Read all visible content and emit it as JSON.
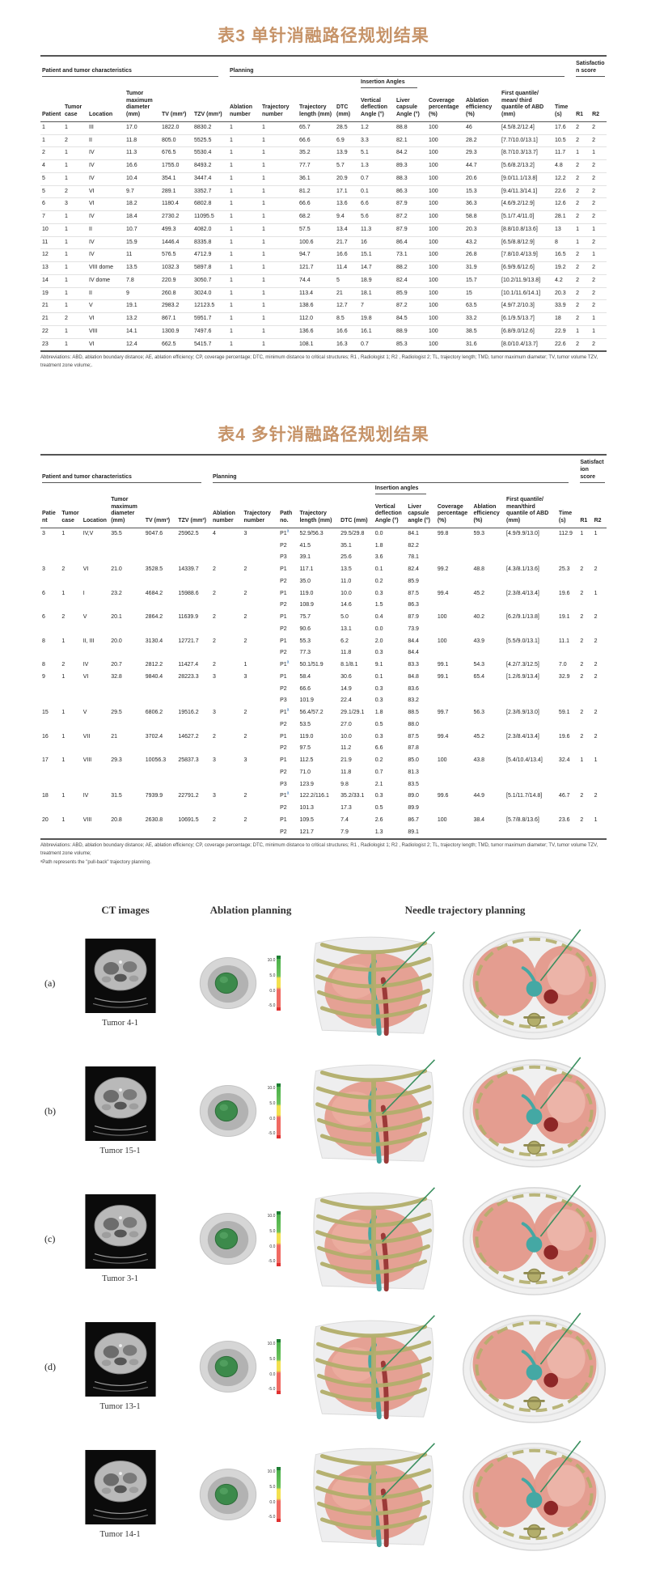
{
  "page": {
    "accent_color": "#C69368",
    "background": "#ffffff"
  },
  "table3": {
    "title": "表3 单针消融路径规划结果",
    "group_headers": {
      "patient": "Patient and tumor characteristics",
      "planning": "Planning",
      "insertion": "Insertion Angles",
      "satisfaction": "Satisfaction score"
    },
    "columns": [
      "Patient",
      "Tumor case",
      "Location",
      "Tumor maximum diameter (mm)",
      "TV (mm³)",
      "TZV (mm³)",
      "Ablation number",
      "Trajectory number",
      "Trajectory length (mm)",
      "DTC (mm)",
      "Vertical deflection Angle (°)",
      "Liver capsule Angle (°)",
      "Coverage percentage (%)",
      "Ablation efficiency (%)",
      "First quantile/ mean/ third quantile of ABD (mm)",
      "Time (s)",
      "R1",
      "R2"
    ],
    "rows": [
      [
        "1",
        "1",
        "III",
        "17.0",
        "1822.0",
        "8830.2",
        "1",
        "1",
        "65.7",
        "28.5",
        "1.2",
        "88.8",
        "100",
        "46",
        "[4.5/8.2/12.4]",
        "17.6",
        "2",
        "2"
      ],
      [
        "1",
        "2",
        "II",
        "11.8",
        "805.0",
        "5525.5",
        "1",
        "1",
        "66.6",
        "6.9",
        "3.3",
        "82.1",
        "100",
        "28.2",
        "[7.7/10.0/13.1]",
        "10.5",
        "2",
        "2"
      ],
      [
        "2",
        "1",
        "IV",
        "11.3",
        "676.5",
        "5530.4",
        "1",
        "1",
        "35.2",
        "13.9",
        "5.1",
        "84.2",
        "100",
        "29.3",
        "[8.7/10.3/13.7]",
        "11.7",
        "1",
        "1"
      ],
      [
        "4",
        "1",
        "IV",
        "16.6",
        "1755.0",
        "8493.2",
        "1",
        "1",
        "77.7",
        "5.7",
        "1.3",
        "89.3",
        "100",
        "44.7",
        "[5.6/8.2/13.2]",
        "4.8",
        "2",
        "2"
      ],
      [
        "5",
        "1",
        "IV",
        "10.4",
        "354.1",
        "3447.4",
        "1",
        "1",
        "36.1",
        "20.9",
        "0.7",
        "88.3",
        "100",
        "20.6",
        "[9.0/11.1/13.8]",
        "12.2",
        "2",
        "2"
      ],
      [
        "5",
        "2",
        "VI",
        "9.7",
        "289.1",
        "3352.7",
        "1",
        "1",
        "81.2",
        "17.1",
        "0.1",
        "86.3",
        "100",
        "15.3",
        "[9.4/11.3/14.1]",
        "22.6",
        "2",
        "2"
      ],
      [
        "6",
        "3",
        "VI",
        "18.2",
        "1180.4",
        "6802.8",
        "1",
        "1",
        "66.6",
        "13.6",
        "6.6",
        "87.9",
        "100",
        "36.3",
        "[4.6/9.2/12.9]",
        "12.6",
        "2",
        "2"
      ],
      [
        "7",
        "1",
        "IV",
        "18.4",
        "2730.2",
        "11095.5",
        "1",
        "1",
        "68.2",
        "9.4",
        "5.6",
        "87.2",
        "100",
        "58.8",
        "[5.1/7.4/11.0]",
        "28.1",
        "2",
        "2"
      ],
      [
        "10",
        "1",
        "II",
        "10.7",
        "499.3",
        "4082.0",
        "1",
        "1",
        "57.5",
        "13.4",
        "11.3",
        "87.9",
        "100",
        "20.3",
        "[8.8/10.8/13.6]",
        "13",
        "1",
        "1"
      ],
      [
        "11",
        "1",
        "IV",
        "15.9",
        "1446.4",
        "8335.8",
        "1",
        "1",
        "100.6",
        "21.7",
        "16",
        "86.4",
        "100",
        "43.2",
        "[6.5/8.8/12.9]",
        "8",
        "1",
        "2"
      ],
      [
        "12",
        "1",
        "IV",
        "11",
        "576.5",
        "4712.9",
        "1",
        "1",
        "94.7",
        "16.6",
        "15.1",
        "73.1",
        "100",
        "26.8",
        "[7.8/10.4/13.9]",
        "16.5",
        "2",
        "1"
      ],
      [
        "13",
        "1",
        "VIII dome",
        "13.5",
        "1032.3",
        "5897.8",
        "1",
        "1",
        "121.7",
        "11.4",
        "14.7",
        "88.2",
        "100",
        "31.9",
        "[6.9/9.6/12.6]",
        "19.2",
        "2",
        "2"
      ],
      [
        "14",
        "1",
        "IV dome",
        "7.8",
        "220.9",
        "3050.7",
        "1",
        "1",
        "74.4",
        "5",
        "18.9",
        "82.4",
        "100",
        "15.7",
        "[10.2/11.9/13.8]",
        "4.2",
        "2",
        "2"
      ],
      [
        "19",
        "1",
        "II",
        "9",
        "260.8",
        "3024.0",
        "1",
        "1",
        "113.4",
        "21",
        "18.1",
        "85.9",
        "100",
        "15",
        "[10.1/11.6/14.1]",
        "20.3",
        "2",
        "2"
      ],
      [
        "21",
        "1",
        "V",
        "19.1",
        "2983.2",
        "12123.5",
        "1",
        "1",
        "138.6",
        "12.7",
        "7",
        "87.2",
        "100",
        "63.5",
        "[4.9/7.2/10.3]",
        "33.9",
        "2",
        "2"
      ],
      [
        "21",
        "2",
        "VI",
        "13.2",
        "867.1",
        "5951.7",
        "1",
        "1",
        "112.0",
        "8.5",
        "19.8",
        "84.5",
        "100",
        "33.2",
        "[6.1/9.5/13.7]",
        "18",
        "2",
        "1"
      ],
      [
        "22",
        "1",
        "VIII",
        "14.1",
        "1300.9",
        "7497.6",
        "1",
        "1",
        "136.6",
        "16.6",
        "16.1",
        "88.9",
        "100",
        "38.5",
        "[6.8/9.0/12.6]",
        "22.9",
        "1",
        "1"
      ],
      [
        "23",
        "1",
        "VI",
        "12.4",
        "662.5",
        "5415.7",
        "1",
        "1",
        "108.1",
        "16.3",
        "0.7",
        "85.3",
        "100",
        "31.6",
        "[8.0/10.4/13.7]",
        "22.6",
        "2",
        "2"
      ]
    ],
    "footnote": "Abbreviations: ABD, ablation boundary distance; AE, ablation efficiency; CP, coverage percentage; DTC, minimum distance to critical structures; R1 , Radiologist 1; R2 , Radiologist 2; TL, trajectory length; TMD, tumor maximum diameter; TV, tumor volume TZV, treatment zone volume;."
  },
  "table4": {
    "title": "表4 多针消融路径规划结果",
    "group_headers": {
      "patient": "Patient and tumor characteristics",
      "planning": "Planning",
      "insertion": "Insertion angles",
      "satisfaction": "Satisfaction score"
    },
    "columns": [
      "Patient",
      "Tumor case",
      "Location",
      "Tumor maximum diameter (mm)",
      "TV (mm³)",
      "TZV (mm³)",
      "Ablation number",
      "Trajectory number",
      "Path no.",
      "Trajectory length (mm)",
      "DTC (mm)",
      "Vertical deflection Angle (°)",
      "Liver capsule angle (°)",
      "Coverage percentage (%)",
      "Ablation efficiency (%)",
      "First quantile/ mean/third quantile of ABD (mm)",
      "Time (s)",
      "R1",
      "R2"
    ],
    "rows": [
      [
        "3",
        "1",
        "IV,V",
        "35.5",
        "9047.6",
        "25962.5",
        "4",
        "3",
        "P1^a",
        "52.9/56.3",
        "29.5/29.8",
        "0.0",
        "84.1",
        "99.8",
        "59.3",
        "[4.9/9.9/13.0]",
        "112.9",
        "1",
        "1"
      ],
      [
        "",
        "",
        "",
        "",
        "",
        "",
        "",
        "",
        "P2",
        "41.5",
        "35.1",
        "1.8",
        "82.2",
        "",
        "",
        "",
        "",
        "",
        ""
      ],
      [
        "",
        "",
        "",
        "",
        "",
        "",
        "",
        "",
        "P3",
        "39.1",
        "25.6",
        "3.6",
        "78.1",
        "",
        "",
        "",
        "",
        "",
        ""
      ],
      [
        "3",
        "2",
        "VI",
        "21.0",
        "3528.5",
        "14339.7",
        "2",
        "2",
        "P1",
        "117.1",
        "13.5",
        "0.1",
        "82.4",
        "99.2",
        "48.8",
        "[4.3/8.1/13.6]",
        "25.3",
        "2",
        "2"
      ],
      [
        "",
        "",
        "",
        "",
        "",
        "",
        "",
        "",
        "P2",
        "35.0",
        "11.0",
        "0.2",
        "85.9",
        "",
        "",
        "",
        "",
        "",
        ""
      ],
      [
        "6",
        "1",
        "I",
        "23.2",
        "4684.2",
        "15988.6",
        "2",
        "2",
        "P1",
        "119.0",
        "10.0",
        "0.3",
        "87.5",
        "99.4",
        "45.2",
        "[2.3/8.4/13.4]",
        "19.6",
        "2",
        "1"
      ],
      [
        "",
        "",
        "",
        "",
        "",
        "",
        "",
        "",
        "P2",
        "108.9",
        "14.6",
        "1.5",
        "86.3",
        "",
        "",
        "",
        "",
        "",
        ""
      ],
      [
        "6",
        "2",
        "V",
        "20.1",
        "2864.2",
        "11639.9",
        "2",
        "2",
        "P1",
        "75.7",
        "5.0",
        "0.4",
        "87.9",
        "100",
        "40.2",
        "[6.2/9.1/13.8]",
        "19.1",
        "2",
        "2"
      ],
      [
        "",
        "",
        "",
        "",
        "",
        "",
        "",
        "",
        "P2",
        "90.6",
        "13.1",
        "0.0",
        "73.9",
        "",
        "",
        "",
        "",
        "",
        ""
      ],
      [
        "8",
        "1",
        "II, III",
        "20.0",
        "3130.4",
        "12721.7",
        "2",
        "2",
        "P1",
        "55.3",
        "6.2",
        "2.0",
        "84.4",
        "100",
        "43.9",
        "[5.5/9.0/13.1]",
        "11.1",
        "2",
        "2"
      ],
      [
        "",
        "",
        "",
        "",
        "",
        "",
        "",
        "",
        "P2",
        "77.3",
        "11.8",
        "0.3",
        "84.4",
        "",
        "",
        "",
        "",
        "",
        ""
      ],
      [
        "8",
        "2",
        "IV",
        "20.7",
        "2812.2",
        "11427.4",
        "2",
        "1",
        "P1^a",
        "50.1/51.9",
        "8.1/8.1",
        "9.1",
        "83.3",
        "99.1",
        "54.3",
        "[4.2/7.3/12.5]",
        "7.0",
        "2",
        "2"
      ],
      [
        "9",
        "1",
        "VI",
        "32.8",
        "9840.4",
        "28223.3",
        "3",
        "3",
        "P1",
        "58.4",
        "30.6",
        "0.1",
        "84.8",
        "99.1",
        "65.4",
        "[1.2/6.9/13.4]",
        "32.9",
        "2",
        "2"
      ],
      [
        "",
        "",
        "",
        "",
        "",
        "",
        "",
        "",
        "P2",
        "66.6",
        "14.9",
        "0.3",
        "83.6",
        "",
        "",
        "",
        "",
        "",
        ""
      ],
      [
        "",
        "",
        "",
        "",
        "",
        "",
        "",
        "",
        "P3",
        "101.9",
        "22.4",
        "0.3",
        "83.2",
        "",
        "",
        "",
        "",
        "",
        ""
      ],
      [
        "15",
        "1",
        "V",
        "29.5",
        "6806.2",
        "19516.2",
        "3",
        "2",
        "P1^a",
        "56.4/57.2",
        "29.1/29.1",
        "1.8",
        "88.5",
        "99.7",
        "56.3",
        "[2.3/6.9/13.0]",
        "59.1",
        "2",
        "2"
      ],
      [
        "",
        "",
        "",
        "",
        "",
        "",
        "",
        "",
        "P2",
        "53.5",
        "27.0",
        "0.5",
        "88.0",
        "",
        "",
        "",
        "",
        "",
        ""
      ],
      [
        "16",
        "1",
        "VII",
        "21",
        "3702.4",
        "14627.2",
        "2",
        "2",
        "P1",
        "119.0",
        "10.0",
        "0.3",
        "87.5",
        "99.4",
        "45.2",
        "[2.3/8.4/13.4]",
        "19.6",
        "2",
        "2"
      ],
      [
        "",
        "",
        "",
        "",
        "",
        "",
        "",
        "",
        "P2",
        "97.5",
        "11.2",
        "6.6",
        "87.8",
        "",
        "",
        "",
        "",
        "",
        ""
      ],
      [
        "17",
        "1",
        "VIII",
        "29.3",
        "10056.3",
        "25837.3",
        "3",
        "3",
        "P1",
        "112.5",
        "21.9",
        "0.2",
        "85.0",
        "100",
        "43.8",
        "[5.4/10.4/13.4]",
        "32.4",
        "1",
        "1"
      ],
      [
        "",
        "",
        "",
        "",
        "",
        "",
        "",
        "",
        "P2",
        "71.0",
        "11.8",
        "0.7",
        "81.3",
        "",
        "",
        "",
        "",
        "",
        ""
      ],
      [
        "",
        "",
        "",
        "",
        "",
        "",
        "",
        "",
        "P3",
        "123.9",
        "9.8",
        "2.1",
        "83.5",
        "",
        "",
        "",
        "",
        "",
        ""
      ],
      [
        "18",
        "1",
        "IV",
        "31.5",
        "7939.9",
        "22791.2",
        "3",
        "2",
        "P1^a",
        "122.2/116.1",
        "35.2/33.1",
        "0.3",
        "89.0",
        "99.6",
        "44.9",
        "[5.1/11.7/14.8]",
        "46.7",
        "2",
        "2"
      ],
      [
        "",
        "",
        "",
        "",
        "",
        "",
        "",
        "",
        "P2",
        "101.3",
        "17.3",
        "0.5",
        "89.9",
        "",
        "",
        "",
        "",
        "",
        ""
      ],
      [
        "20",
        "1",
        "VIII",
        "20.8",
        "2630.8",
        "10691.5",
        "2",
        "2",
        "P1",
        "109.5",
        "7.4",
        "2.6",
        "86.7",
        "100",
        "38.4",
        "[5.7/8.8/13.6]",
        "23.6",
        "2",
        "1"
      ],
      [
        "",
        "",
        "",
        "",
        "",
        "",
        "",
        "",
        "P2",
        "121.7",
        "7.9",
        "1.3",
        "89.1",
        "",
        "",
        "",
        "",
        "",
        ""
      ]
    ],
    "footnote": "Abbreviations: ABD, ablation boundary distance; AE, ablation efficiency; CP, coverage percentage; DTC, minimum distance to critical structures; R1 , Radiologist 1; R2 , Radiologist 2; TL, trajectory length; TMD, tumor maximum diameter; TV, tumor volume TZV, treatment zone volume;",
    "footnote2": "ᵃPath represents the \"pull-back\" trajectory planning."
  },
  "figure": {
    "col_headers": [
      "CT images",
      "Ablation planning",
      "Needle trajectory planning"
    ],
    "colorbar_ticks": [
      "10.0",
      "5.0",
      "0.0",
      "-5.0"
    ],
    "rows": [
      {
        "label": "(a)",
        "tumor": "Tumor 4-1"
      },
      {
        "label": "(b)",
        "tumor": "Tumor 15-1"
      },
      {
        "label": "(c)",
        "tumor": "Tumor 3-1"
      },
      {
        "label": "(d)",
        "tumor": "Tumor 13-1"
      },
      {
        "label": "",
        "tumor": "Tumor 14-1"
      }
    ]
  }
}
